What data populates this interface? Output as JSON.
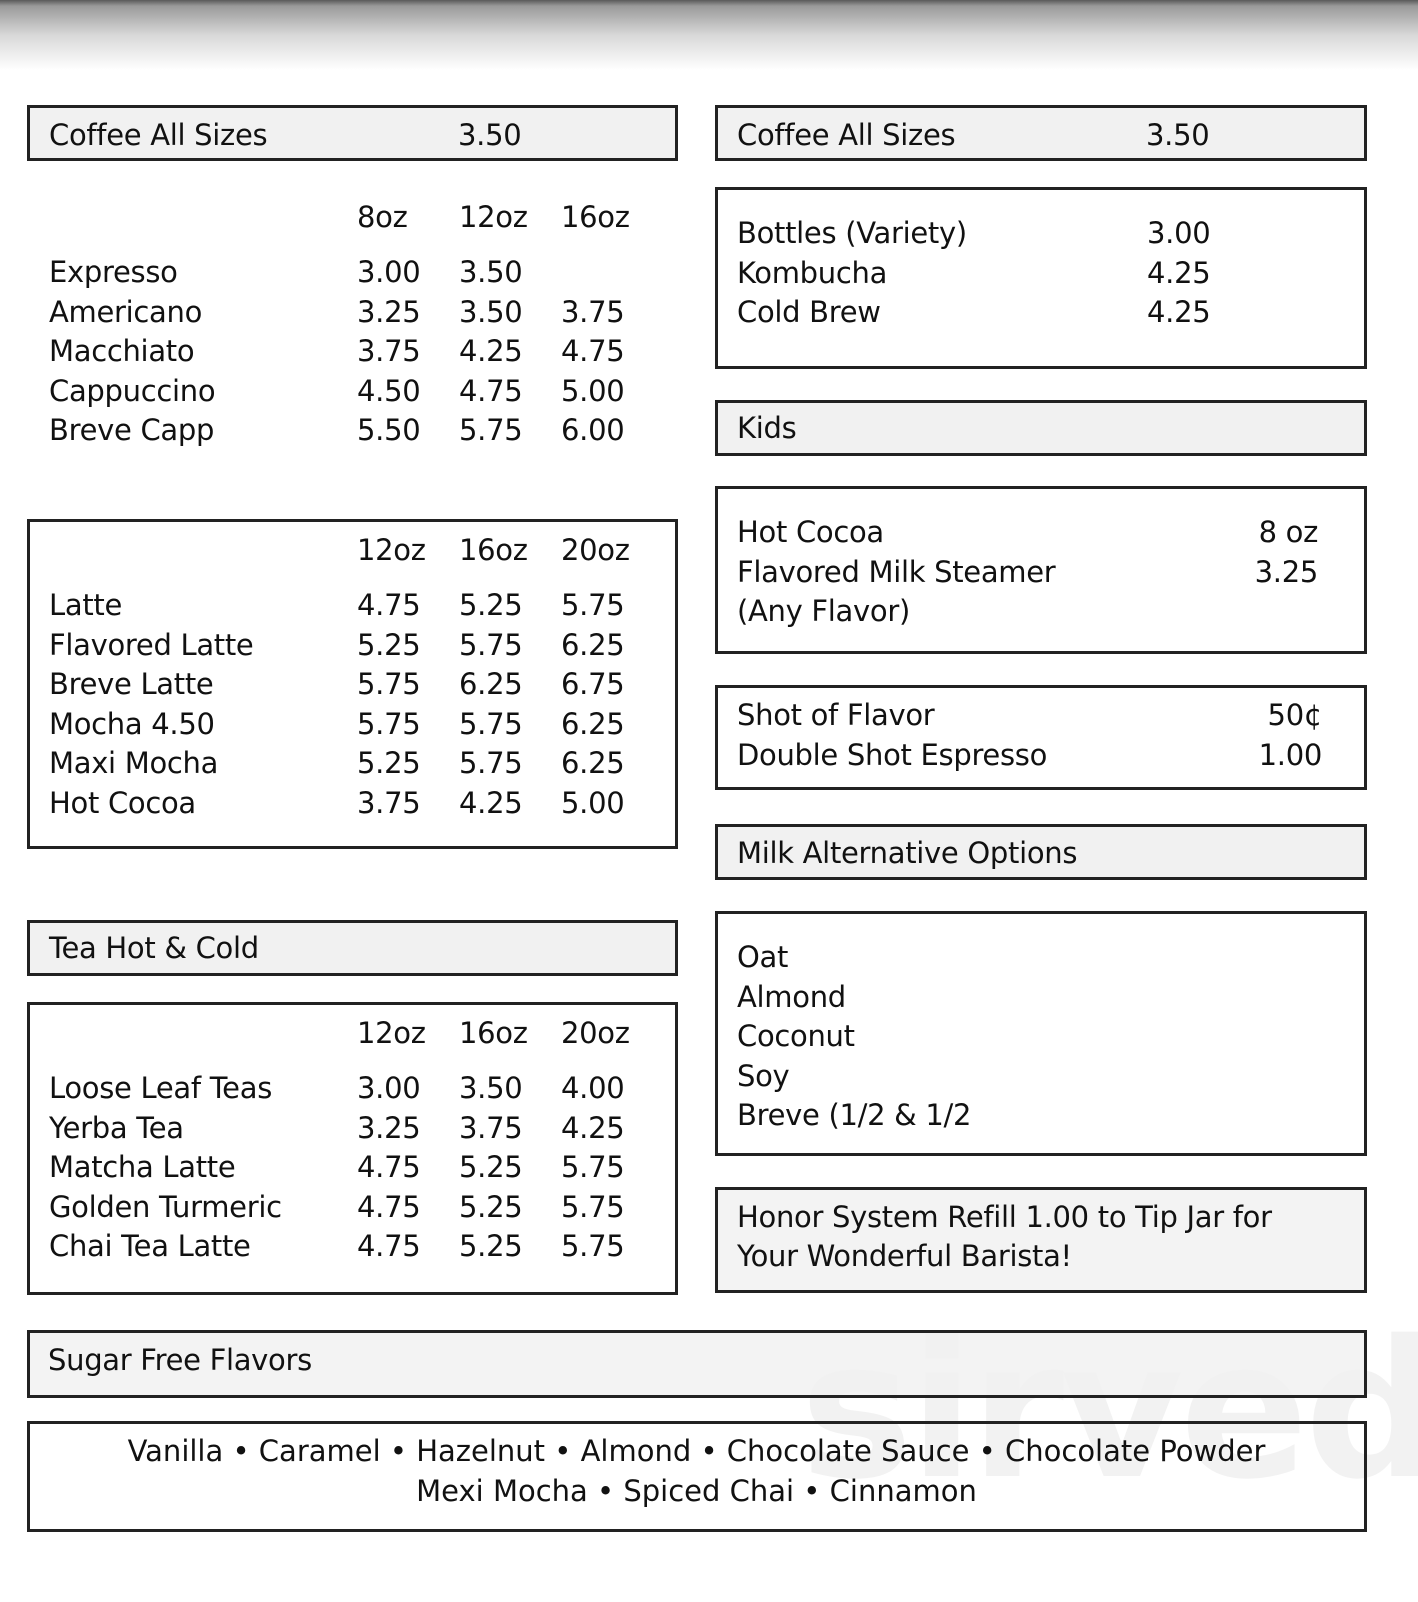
{
  "watermark": "sirved",
  "left": {
    "coffee_header": {
      "label": "Coffee All Sizes",
      "price": "3.50"
    },
    "espresso_table": {
      "sizes": [
        "8oz",
        "12oz",
        "16oz"
      ],
      "rows": [
        {
          "name": "Expresso",
          "prices": [
            "3.00",
            "3.50",
            ""
          ]
        },
        {
          "name": "Americano",
          "prices": [
            "3.25",
            "3.50",
            "3.75"
          ]
        },
        {
          "name": "Macchiato",
          "prices": [
            "3.75",
            "4.25",
            "4.75"
          ]
        },
        {
          "name": "Cappuccino",
          "prices": [
            "4.50",
            "4.75",
            "5.00"
          ]
        },
        {
          "name": "Breve Capp",
          "prices": [
            "5.50",
            "5.75",
            "6.00"
          ]
        }
      ]
    },
    "latte_table": {
      "sizes": [
        "12oz",
        "16oz",
        "20oz"
      ],
      "rows": [
        {
          "name": "Latte",
          "prices": [
            "4.75",
            "5.25",
            "5.75"
          ]
        },
        {
          "name": "Flavored Latte",
          "prices": [
            "5.25",
            "5.75",
            "6.25"
          ]
        },
        {
          "name": "Breve Latte",
          "prices": [
            "5.75",
            "6.25",
            "6.75"
          ]
        },
        {
          "name": "Mocha 4.50",
          "prices": [
            "5.75",
            "5.75",
            "6.25"
          ]
        },
        {
          "name": "Maxi Mocha",
          "prices": [
            "5.25",
            "5.75",
            "6.25"
          ]
        },
        {
          "name": "Hot Cocoa",
          "prices": [
            "3.75",
            "4.25",
            "5.00"
          ]
        }
      ]
    },
    "tea_header": {
      "label": "Tea Hot & Cold"
    },
    "tea_table": {
      "sizes": [
        "12oz",
        "16oz",
        "20oz"
      ],
      "rows": [
        {
          "name": "Loose Leaf Teas",
          "prices": [
            "3.00",
            "3.50",
            "4.00"
          ]
        },
        {
          "name": "Yerba Tea",
          "prices": [
            "3.25",
            "3.75",
            "4.25"
          ]
        },
        {
          "name": "Matcha Latte",
          "prices": [
            "4.75",
            "5.25",
            "5.75"
          ]
        },
        {
          "name": "Golden Turmeric",
          "prices": [
            "4.75",
            "5.25",
            "5.75"
          ]
        },
        {
          "name": "Chai Tea Latte",
          "prices": [
            "4.75",
            "5.25",
            "5.75"
          ]
        }
      ]
    }
  },
  "right": {
    "coffee_header": {
      "label": "Coffee All Sizes",
      "price": "3.50"
    },
    "bottles": [
      {
        "name": "Bottles (Variety)",
        "price": "3.00"
      },
      {
        "name": "Kombucha",
        "price": "4.25"
      },
      {
        "name": "Cold Brew",
        "price": "4.25"
      }
    ],
    "kids_header": {
      "label": "Kids"
    },
    "kids": [
      {
        "name": "Hot Cocoa",
        "price": "8 oz"
      },
      {
        "name": "Flavored Milk Steamer",
        "price": "3.25"
      },
      {
        "name": "(Any Flavor)",
        "price": ""
      }
    ],
    "extras": [
      {
        "name": "Shot of Flavor",
        "price": "50¢"
      },
      {
        "name": "Double Shot Espresso",
        "price": "1.00"
      }
    ],
    "milk_header": {
      "label": "Milk Alternative Options"
    },
    "milk_options": [
      "Oat",
      "Almond",
      "Coconut",
      "Soy",
      "Breve (1/2 & 1/2"
    ],
    "honor": {
      "line1": "Honor System Refill   1.00 to Tip Jar for",
      "line2": "Your Wonderful Barista!"
    }
  },
  "sugar_free": {
    "header": "Sugar Free Flavors",
    "line1": "Vanilla • Caramel • Hazelnut • Almond • Chocolate Sauce • Chocolate Powder",
    "line2": "Mexi Mocha • Spiced Chai • Cinnamon"
  }
}
